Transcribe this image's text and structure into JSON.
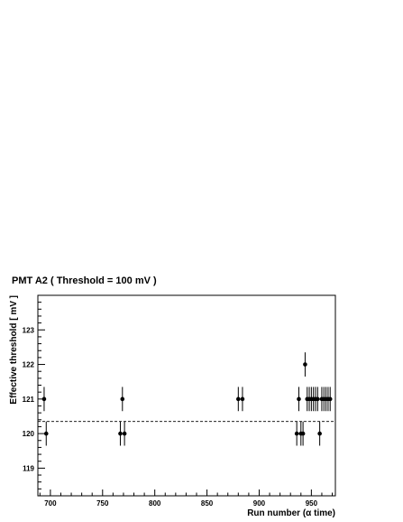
{
  "chart_data": {
    "type": "scatter",
    "title": "PMT A2   ( Threshold = 100 mV )",
    "xlabel": "Run number   (α time)",
    "ylabel": "Effective threshold    [ mV ]",
    "xlim": [
      688,
      973
    ],
    "ylim": [
      118.2,
      124.0
    ],
    "x_ticks": [
      700,
      750,
      800,
      850,
      900,
      950
    ],
    "y_ticks": [
      119,
      120,
      121,
      122,
      123
    ],
    "reference_line": {
      "y": 120.35,
      "style": "dashed"
    },
    "error_bar": 0.35,
    "points": [
      {
        "x": 694,
        "y": 121
      },
      {
        "x": 696,
        "y": 120
      },
      {
        "x": 767,
        "y": 120
      },
      {
        "x": 769,
        "y": 121
      },
      {
        "x": 771,
        "y": 120
      },
      {
        "x": 880,
        "y": 121
      },
      {
        "x": 884,
        "y": 121
      },
      {
        "x": 936,
        "y": 120
      },
      {
        "x": 938,
        "y": 121
      },
      {
        "x": 940,
        "y": 120
      },
      {
        "x": 942,
        "y": 120
      },
      {
        "x": 944,
        "y": 122
      },
      {
        "x": 946,
        "y": 121
      },
      {
        "x": 948,
        "y": 121
      },
      {
        "x": 950,
        "y": 121
      },
      {
        "x": 952,
        "y": 121
      },
      {
        "x": 954,
        "y": 121
      },
      {
        "x": 956,
        "y": 121
      },
      {
        "x": 958,
        "y": 120
      },
      {
        "x": 960,
        "y": 121
      },
      {
        "x": 962,
        "y": 121
      },
      {
        "x": 964,
        "y": 121
      },
      {
        "x": 966,
        "y": 121
      },
      {
        "x": 968,
        "y": 121
      }
    ]
  }
}
